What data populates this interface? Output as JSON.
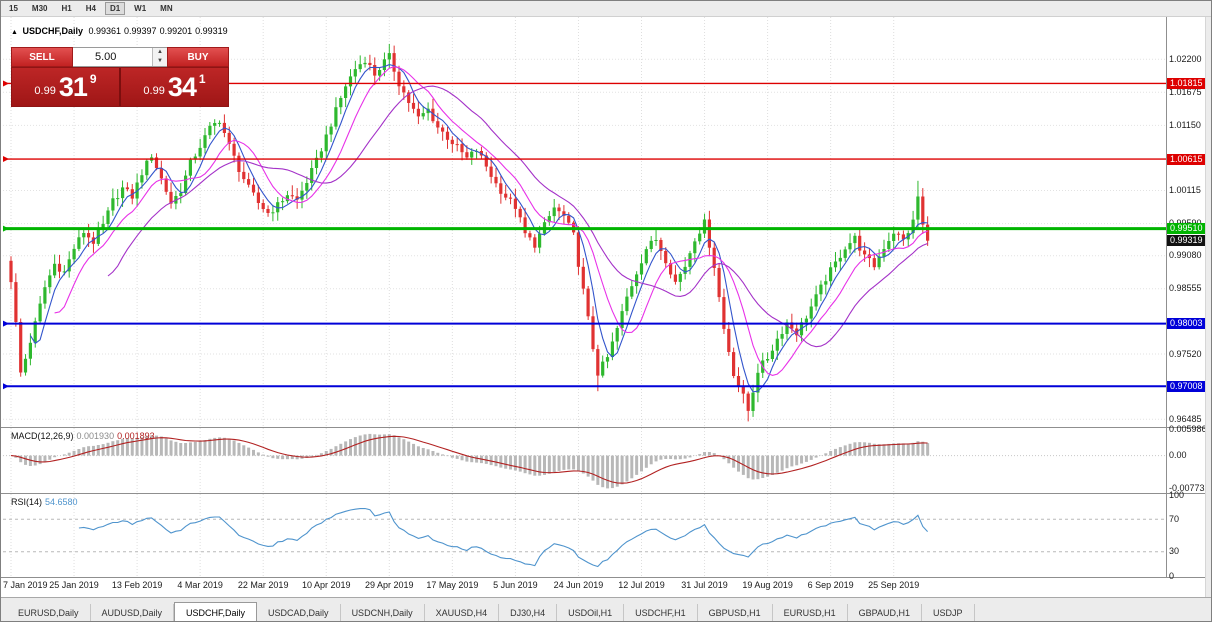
{
  "timeframe_bar": {
    "items": [
      {
        "label": "15",
        "active": false
      },
      {
        "label": "M30",
        "active": false
      },
      {
        "label": "H1",
        "active": false
      },
      {
        "label": "H4",
        "active": false
      },
      {
        "label": "D1",
        "active": true
      },
      {
        "label": "W1",
        "active": false
      },
      {
        "label": "MN",
        "active": false
      }
    ]
  },
  "chart": {
    "title": {
      "collapse_icon": "▲",
      "symbol": "USDCHF,Daily",
      "open": "0.99361",
      "high": "0.99397",
      "low": "0.99201",
      "close": "0.99319"
    },
    "trade_panel": {
      "sell_label": "SELL",
      "buy_label": "BUY",
      "volume": "5.00",
      "sell_price_prefix": "0.99",
      "sell_price_big": "31",
      "sell_price_sup": "9",
      "buy_price_prefix": "0.99",
      "buy_price_big": "34",
      "buy_price_sup": "1"
    },
    "price_axis": {
      "plain": [
        {
          "label": "1.02200",
          "value": 1.022
        },
        {
          "label": "1.01675",
          "value": 1.01675
        },
        {
          "label": "1.01150",
          "value": 1.0115
        },
        {
          "label": "1.00115",
          "value": 1.00115
        },
        {
          "label": "0.99590",
          "value": 0.9959
        },
        {
          "label": "0.99080",
          "value": 0.9908
        },
        {
          "label": "0.98555",
          "value": 0.98555
        },
        {
          "label": "0.97520",
          "value": 0.9752
        },
        {
          "label": "0.96485",
          "value": 0.96485
        }
      ],
      "lines": [
        {
          "name": "resistance-upper",
          "label": "1.01815",
          "price": 1.01815,
          "color": "#dd0000",
          "width": 1.4
        },
        {
          "name": "resistance-lower",
          "label": "1.00615",
          "price": 1.00615,
          "color": "#dd0000",
          "width": 1.4
        },
        {
          "name": "pivot-green",
          "label": "0.99510",
          "price": 0.9951,
          "color": "#00b400",
          "width": 3
        },
        {
          "name": "support-upper",
          "label": "0.98003",
          "price": 0.98003,
          "color": "#0000d8",
          "width": 2
        },
        {
          "name": "support-lower",
          "label": "0.97008",
          "price": 0.97008,
          "color": "#0000d8",
          "width": 2
        }
      ],
      "current": {
        "label": "0.99319",
        "value": 0.99319,
        "color": "#111111"
      }
    },
    "date_axis": {
      "labels": [
        "7 Jan 2019",
        "25 Jan 2019",
        "13 Feb 2019",
        "4 Mar 2019",
        "22 Mar 2019",
        "10 Apr 2019",
        "29 Apr 2019",
        "17 May 2019",
        "5 Jun 2019",
        "24 Jun 2019",
        "12 Jul 2019",
        "31 Jul 2019",
        "19 Aug 2019",
        "6 Sep 2019",
        "25 Sep 2019"
      ]
    }
  },
  "indicators": {
    "macd": {
      "title": "MACD(12,26,9)",
      "value_main": "0.001930",
      "value_signal": "0.001893",
      "axis": [
        {
          "label": "0.005986",
          "value": 0.005986
        },
        {
          "label": "0.00",
          "value": 0
        },
        {
          "label": "-0.007732",
          "value": -0.007732
        }
      ]
    },
    "rsi": {
      "title": "RSI(14)",
      "value": "54.6580",
      "axis": [
        {
          "label": "100",
          "value": 100
        },
        {
          "label": "70",
          "value": 70
        },
        {
          "label": "30",
          "value": 30
        },
        {
          "label": "0",
          "value": 0
        }
      ]
    }
  },
  "tab_bar": {
    "active_index": 2,
    "tabs": [
      "EURUSD,Daily",
      "AUDUSD,Daily",
      "USDCHF,Daily",
      "USDCAD,Daily",
      "USDCNH,Daily",
      "XAUUSD,H4",
      "DJ30,H4",
      "USDOil,H1",
      "USDCHF,H1",
      "GBPUSD,H1",
      "EURUSD,H1",
      "GBPAUD,H1",
      "USDJP"
    ]
  },
  "chart_data": {
    "type": "candlestick",
    "symbol": "USDCHF",
    "timeframe": "Daily",
    "visible_ohlc": {
      "open": 0.99361,
      "high": 0.99397,
      "low": 0.99201,
      "close": 0.99319
    },
    "y_axis_range": [
      0.96377,
      1.0287
    ],
    "candle_count": 190,
    "up_color": "#2eb82e",
    "down_color": "#e03232",
    "close_path_anchors": [
      [
        0,
        0.987
      ],
      [
        1,
        0.98
      ],
      [
        2,
        0.9722
      ],
      [
        3,
        0.9745
      ],
      [
        5,
        0.98
      ],
      [
        7,
        0.9858
      ],
      [
        9,
        0.9895
      ],
      [
        11,
        0.9882
      ],
      [
        13,
        0.992
      ],
      [
        15,
        0.9946
      ],
      [
        17,
        0.993
      ],
      [
        19,
        0.9956
      ],
      [
        21,
        0.9995
      ],
      [
        23,
        1.0015
      ],
      [
        25,
        1.0002
      ],
      [
        27,
        1.004
      ],
      [
        29,
        1.0068
      ],
      [
        31,
        1.003
      ],
      [
        33,
        0.9992
      ],
      [
        35,
        1.0012
      ],
      [
        37,
        1.0055
      ],
      [
        39,
        1.0082
      ],
      [
        41,
        1.011
      ],
      [
        43,
        1.0124
      ],
      [
        45,
        1.0082
      ],
      [
        47,
        1.0046
      ],
      [
        49,
        1.0015
      ],
      [
        51,
        0.9992
      ],
      [
        53,
        0.9976
      ],
      [
        55,
        0.9988
      ],
      [
        57,
        1.0006
      ],
      [
        59,
        0.9996
      ],
      [
        61,
        1.0026
      ],
      [
        63,
        1.0058
      ],
      [
        65,
        1.0098
      ],
      [
        67,
        1.0138
      ],
      [
        69,
        1.0178
      ],
      [
        71,
        1.0205
      ],
      [
        73,
        1.022
      ],
      [
        75,
        1.0196
      ],
      [
        77,
        1.0216
      ],
      [
        78,
        1.0224
      ],
      [
        80,
        1.0182
      ],
      [
        82,
        1.0152
      ],
      [
        84,
        1.0126
      ],
      [
        86,
        1.014
      ],
      [
        88,
        1.0112
      ],
      [
        90,
        1.0096
      ],
      [
        92,
        1.008
      ],
      [
        94,
        1.0062
      ],
      [
        96,
        1.0076
      ],
      [
        98,
        1.005
      ],
      [
        100,
        1.0022
      ],
      [
        102,
        1.0002
      ],
      [
        104,
        0.9986
      ],
      [
        106,
        0.9942
      ],
      [
        108,
        0.9926
      ],
      [
        110,
        0.9956
      ],
      [
        112,
        0.9984
      ],
      [
        114,
        0.997
      ],
      [
        116,
        0.994
      ],
      [
        118,
        0.9852
      ],
      [
        120,
        0.9762
      ],
      [
        121,
        0.9722
      ],
      [
        123,
        0.9746
      ],
      [
        125,
        0.9792
      ],
      [
        127,
        0.9842
      ],
      [
        129,
        0.9882
      ],
      [
        131,
        0.992
      ],
      [
        133,
        0.9934
      ],
      [
        135,
        0.9902
      ],
      [
        137,
        0.9866
      ],
      [
        139,
        0.9892
      ],
      [
        141,
        0.9936
      ],
      [
        143,
        0.996
      ],
      [
        145,
        0.9892
      ],
      [
        147,
        0.9792
      ],
      [
        149,
        0.9722
      ],
      [
        151,
        0.9684
      ],
      [
        152,
        0.9662
      ],
      [
        154,
        0.9726
      ],
      [
        156,
        0.9746
      ],
      [
        158,
        0.9776
      ],
      [
        160,
        0.9802
      ],
      [
        162,
        0.9786
      ],
      [
        164,
        0.9812
      ],
      [
        166,
        0.9842
      ],
      [
        168,
        0.9872
      ],
      [
        170,
        0.9896
      ],
      [
        172,
        0.9922
      ],
      [
        174,
        0.9936
      ],
      [
        176,
        0.9906
      ],
      [
        178,
        0.9892
      ],
      [
        180,
        0.9922
      ],
      [
        182,
        0.9946
      ],
      [
        184,
        0.9932
      ],
      [
        186,
        0.9962
      ],
      [
        187,
        1.0002
      ],
      [
        188,
        0.9956
      ],
      [
        189,
        0.99319
      ]
    ],
    "wick_overrides": {
      "2": {
        "low": 0.9716
      },
      "121": {
        "low": 0.9693
      },
      "152": {
        "low": 0.9645
      },
      "187": {
        "high": 1.0027
      },
      "189": {
        "close": 0.99319
      }
    },
    "moving_averages": [
      {
        "period": 5,
        "color": "#3355cc"
      },
      {
        "period": 10,
        "color": "#e832e8"
      },
      {
        "period": 21,
        "color": "#a432c8"
      }
    ],
    "horizontal_lines": [
      1.01815,
      1.00615,
      0.9951,
      0.98003,
      0.97008
    ],
    "macd": {
      "fast": 12,
      "slow": 26,
      "signal": 9,
      "last_main": 0.00193,
      "last_signal": 0.001893,
      "scale_max": 0.005986,
      "scale_min": -0.007732,
      "histogram_color": "#b8b8b8",
      "signal_color": "#b22222"
    },
    "rsi": {
      "period": 14,
      "last": 54.658,
      "levels": [
        70,
        30
      ],
      "line_color": "#4f94cd"
    }
  }
}
